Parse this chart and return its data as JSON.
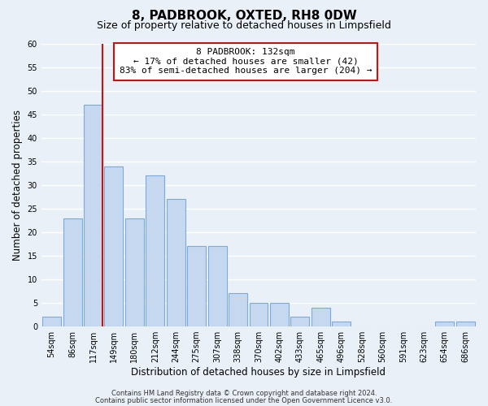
{
  "title": "8, PADBROOK, OXTED, RH8 0DW",
  "subtitle": "Size of property relative to detached houses in Limpsfield",
  "xlabel": "Distribution of detached houses by size in Limpsfield",
  "ylabel": "Number of detached properties",
  "bar_labels": [
    "54sqm",
    "86sqm",
    "117sqm",
    "149sqm",
    "180sqm",
    "212sqm",
    "244sqm",
    "275sqm",
    "307sqm",
    "338sqm",
    "370sqm",
    "402sqm",
    "433sqm",
    "465sqm",
    "496sqm",
    "528sqm",
    "560sqm",
    "591sqm",
    "623sqm",
    "654sqm",
    "686sqm"
  ],
  "bar_values": [
    2,
    23,
    47,
    34,
    23,
    32,
    27,
    17,
    17,
    7,
    5,
    5,
    2,
    4,
    1,
    0,
    0,
    0,
    0,
    1,
    1
  ],
  "bar_color": "#c5d8f0",
  "bar_edge_color": "#7aabdc",
  "highlight_color": "#cc1111",
  "vline_index": 2,
  "annotation_line1": "8 PADBROOK: 132sqm",
  "annotation_line2": "← 17% of detached houses are smaller (42)",
  "annotation_line3": "83% of semi-detached houses are larger (204) →",
  "annotation_box_facecolor": "#ffffff",
  "annotation_box_edgecolor": "#cc1111",
  "ylim": [
    0,
    60
  ],
  "yticks": [
    0,
    5,
    10,
    15,
    20,
    25,
    30,
    35,
    40,
    45,
    50,
    55,
    60
  ],
  "footnote1": "Contains HM Land Registry data © Crown copyright and database right 2024.",
  "footnote2": "Contains public sector information licensed under the Open Government Licence v3.0.",
  "bg_color": "#eaf0f8",
  "grid_color": "#ffffff",
  "title_fontsize": 11,
  "subtitle_fontsize": 9,
  "axis_label_fontsize": 8.5,
  "tick_fontsize": 7,
  "annotation_fontsize": 8,
  "footnote_fontsize": 6
}
